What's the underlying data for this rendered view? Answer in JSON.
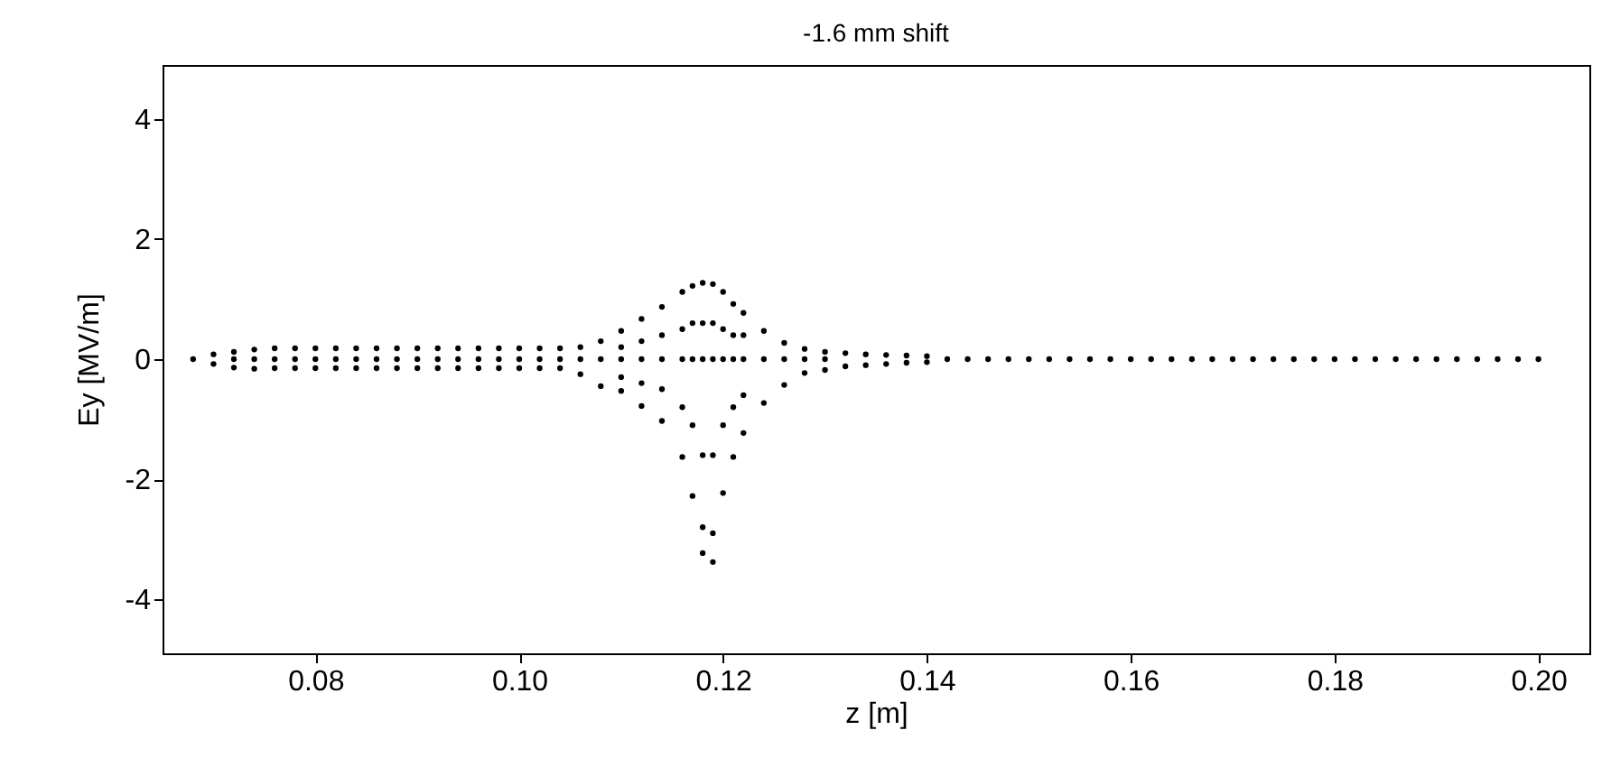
{
  "chart_data": {
    "type": "scatter",
    "title": "-1.6 mm shift",
    "xlabel": "z [m]",
    "ylabel": "Ey [MV/m]",
    "color": "#000000",
    "marker": "circle",
    "grid": false,
    "xlim": [
      0.065,
      0.205
    ],
    "ylim": [
      -4.9,
      4.9
    ],
    "xticks": [
      0.08,
      {
        "value": 0.1,
        "label": "0.10"
      },
      0.12,
      0.14,
      0.16,
      0.18,
      {
        "value": 0.2,
        "label": "0.20"
      }
    ],
    "yticks": [
      -4,
      -2,
      0,
      2,
      4
    ],
    "x": [
      0.068,
      0.07,
      0.07,
      0.072,
      0.072,
      0.072,
      0.074,
      0.074,
      0.074,
      0.076,
      0.076,
      0.076,
      0.078,
      0.078,
      0.078,
      0.08,
      0.08,
      0.08,
      0.082,
      0.082,
      0.082,
      0.084,
      0.084,
      0.084,
      0.086,
      0.086,
      0.086,
      0.088,
      0.088,
      0.088,
      0.09,
      0.09,
      0.09,
      0.092,
      0.092,
      0.092,
      0.094,
      0.094,
      0.094,
      0.096,
      0.096,
      0.096,
      0.098,
      0.098,
      0.098,
      0.1,
      0.1,
      0.1,
      0.102,
      0.102,
      0.102,
      0.104,
      0.104,
      0.104,
      0.106,
      0.106,
      0.106,
      0.108,
      0.108,
      0.108,
      0.11,
      0.11,
      0.11,
      0.11,
      0.11,
      0.112,
      0.112,
      0.112,
      0.112,
      0.112,
      0.114,
      0.114,
      0.114,
      0.114,
      0.114,
      0.116,
      0.116,
      0.116,
      0.116,
      0.116,
      0.117,
      0.117,
      0.117,
      0.117,
      0.117,
      0.118,
      0.118,
      0.118,
      0.118,
      0.118,
      0.118,
      0.119,
      0.119,
      0.119,
      0.119,
      0.119,
      0.119,
      0.12,
      0.12,
      0.12,
      0.12,
      0.12,
      0.121,
      0.121,
      0.121,
      0.121,
      0.121,
      0.122,
      0.122,
      0.122,
      0.122,
      0.122,
      0.124,
      0.124,
      0.124,
      0.126,
      0.126,
      0.126,
      0.128,
      0.128,
      0.128,
      0.13,
      0.13,
      0.13,
      0.132,
      0.132,
      0.134,
      0.134,
      0.136,
      0.136,
      0.138,
      0.138,
      0.14,
      0.14,
      0.142,
      0.144,
      0.146,
      0.148,
      0.15,
      0.152,
      0.154,
      0.156,
      0.158,
      0.16,
      0.162,
      0.164,
      0.166,
      0.168,
      0.17,
      0.172,
      0.174,
      0.176,
      0.178,
      0.18,
      0.182,
      0.184,
      0.186,
      0.188,
      0.19,
      0.192,
      0.194,
      0.196,
      0.198,
      0.2
    ],
    "values": [
      0,
      0.08,
      -0.08,
      0.12,
      -0.14,
      0,
      0.16,
      -0.16,
      0,
      0.18,
      -0.15,
      0,
      0.18,
      -0.15,
      0,
      0.18,
      -0.15,
      0,
      0.18,
      -0.15,
      0,
      0.18,
      -0.15,
      0,
      0.18,
      -0.15,
      0,
      0.18,
      -0.15,
      0,
      0.18,
      -0.15,
      0,
      0.18,
      -0.15,
      0,
      0.18,
      -0.15,
      0,
      0.18,
      -0.15,
      0,
      0.18,
      -0.15,
      0,
      0.18,
      -0.15,
      0,
      0.18,
      -0.15,
      0,
      0.18,
      -0.15,
      0,
      0.2,
      -0.25,
      0,
      0.3,
      -0.45,
      0,
      0.47,
      -0.53,
      0,
      0.2,
      -0.3,
      0.67,
      -0.78,
      0,
      0.3,
      -0.4,
      0.87,
      -1.03,
      0,
      0.4,
      -0.5,
      1.12,
      -1.63,
      0,
      0.5,
      -0.8,
      1.22,
      -2.28,
      0,
      0.6,
      -1.1,
      1.27,
      -3.23,
      0,
      0.6,
      -1.6,
      -2.8,
      1.25,
      -3.38,
      0,
      0.6,
      -1.6,
      -2.9,
      1.12,
      -2.23,
      0,
      0.5,
      -1.1,
      0.92,
      -1.63,
      0,
      0.4,
      -0.8,
      0.77,
      -1.23,
      0,
      0.4,
      -0.6,
      0.47,
      -0.73,
      0,
      0.27,
      -0.43,
      0,
      0.17,
      -0.23,
      0,
      0.12,
      -0.18,
      0,
      0.1,
      -0.12,
      0.08,
      -0.1,
      0.07,
      -0.08,
      0.06,
      -0.06,
      0.05,
      -0.05,
      0,
      0,
      0,
      0,
      0,
      0,
      0,
      0,
      0,
      0,
      0,
      0,
      0,
      0,
      0,
      0,
      0,
      0,
      0,
      0,
      0,
      0,
      0,
      0,
      0,
      0,
      0,
      0,
      0,
      0
    ]
  }
}
